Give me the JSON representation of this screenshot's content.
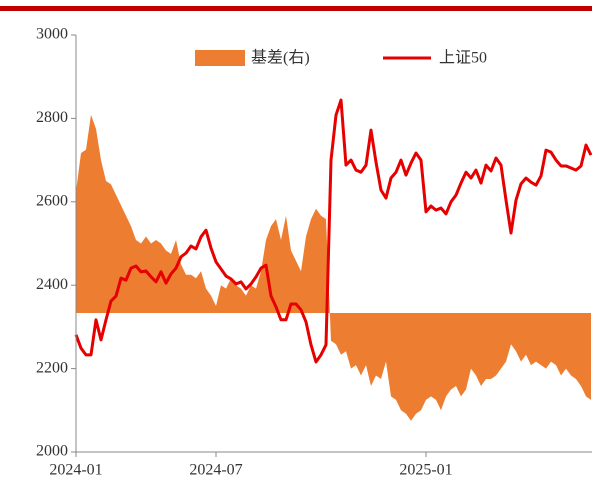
{
  "chart_data": {
    "type": "line",
    "categories": [
      "2024-01",
      null,
      null,
      null,
      null,
      null,
      null,
      null,
      null,
      null,
      null,
      null,
      null,
      null,
      null,
      null,
      null,
      null,
      null,
      null,
      null,
      null,
      null,
      null,
      null,
      null,
      null,
      null,
      "2024-07",
      null,
      null,
      null,
      null,
      null,
      null,
      null,
      null,
      null,
      null,
      null,
      null,
      null,
      null,
      null,
      null,
      null,
      null,
      null,
      null,
      null,
      null,
      null,
      null,
      null,
      null,
      null,
      null,
      null,
      null,
      null,
      null,
      null,
      null,
      null,
      null,
      null,
      null,
      null,
      null,
      null,
      "2025-01",
      null,
      null,
      null,
      null,
      null,
      null,
      null,
      null,
      null,
      null,
      null,
      null,
      null,
      null,
      null,
      null,
      null,
      null,
      null,
      null,
      null,
      null,
      null,
      null,
      null,
      null,
      null,
      null,
      null,
      null,
      null,
      null,
      null
    ],
    "series": [
      {
        "name": "基差(右)",
        "color": "#ed7d31",
        "axis": "y2",
        "values": [
          35,
          46,
          47,
          57,
          53,
          44,
          38,
          37,
          34,
          31,
          28,
          25,
          21,
          20,
          22,
          20,
          21,
          20,
          18,
          17,
          21,
          14,
          11,
          11,
          10,
          12,
          7,
          5,
          2,
          8,
          7,
          10,
          8,
          7,
          5,
          8,
          7,
          12,
          21,
          25,
          27,
          21,
          28,
          18,
          15,
          12,
          22,
          27,
          30,
          28,
          27,
          -8,
          -9,
          -12,
          -11,
          -16,
          -15,
          -18,
          -15,
          -21,
          -18,
          -19,
          -14,
          -24,
          -25,
          -28,
          -29,
          -31,
          -29,
          -28,
          -25,
          -24,
          -25,
          -28,
          -24,
          -22,
          -21,
          -24,
          -22,
          -16,
          -18,
          -21,
          -19,
          -19,
          -18,
          -16,
          -14,
          -9,
          -11,
          -14,
          -12,
          -15,
          -14,
          -15,
          -16,
          -14,
          -15,
          -18,
          -16,
          -18,
          -19,
          -21,
          -24,
          -25
        ]
      },
      {
        "name": "上证50",
        "color": "#e60000",
        "values": [
          2281,
          2249,
          2233,
          2233,
          2317,
          2269,
          2317,
          2362,
          2374,
          2417,
          2412,
          2441,
          2446,
          2432,
          2434,
          2420,
          2408,
          2432,
          2405,
          2427,
          2441,
          2468,
          2477,
          2494,
          2487,
          2516,
          2532,
          2489,
          2456,
          2439,
          2422,
          2415,
          2403,
          2408,
          2391,
          2403,
          2420,
          2441,
          2448,
          2374,
          2348,
          2317,
          2317,
          2355,
          2355,
          2341,
          2312,
          2257,
          2216,
          2233,
          2257,
          2700,
          2808,
          2844,
          2688,
          2700,
          2676,
          2671,
          2688,
          2772,
          2695,
          2628,
          2609,
          2657,
          2671,
          2700,
          2664,
          2693,
          2717,
          2700,
          2576,
          2590,
          2580,
          2585,
          2571,
          2600,
          2616,
          2645,
          2671,
          2657,
          2676,
          2645,
          2688,
          2674,
          2705,
          2688,
          2604,
          2525,
          2604,
          2643,
          2657,
          2647,
          2640,
          2662,
          2724,
          2719,
          2700,
          2686,
          2686,
          2681,
          2676,
          2686,
          2736,
          2712
        ]
      }
    ],
    "ylim": [
      2000,
      3000
    ],
    "yticks": [
      2000,
      2200,
      2400,
      2600,
      2800,
      3000
    ],
    "y2lim": [
      -40,
      80
    ]
  }
}
